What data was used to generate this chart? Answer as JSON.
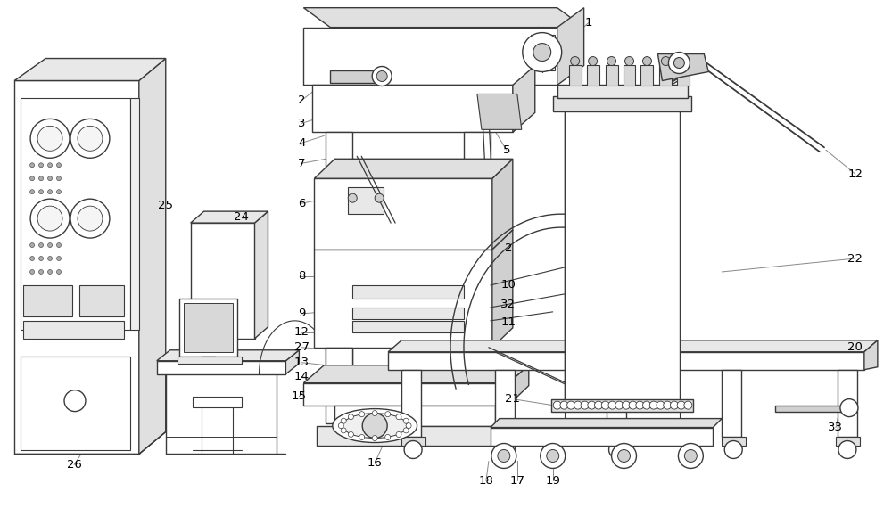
{
  "bg_color": "#ffffff",
  "lc": "#3a3a3a",
  "lg": "#c8c8c8",
  "mg": "#888888",
  "lw": 1.0,
  "figsize": [
    10.0,
    5.89
  ],
  "dpi": 100
}
